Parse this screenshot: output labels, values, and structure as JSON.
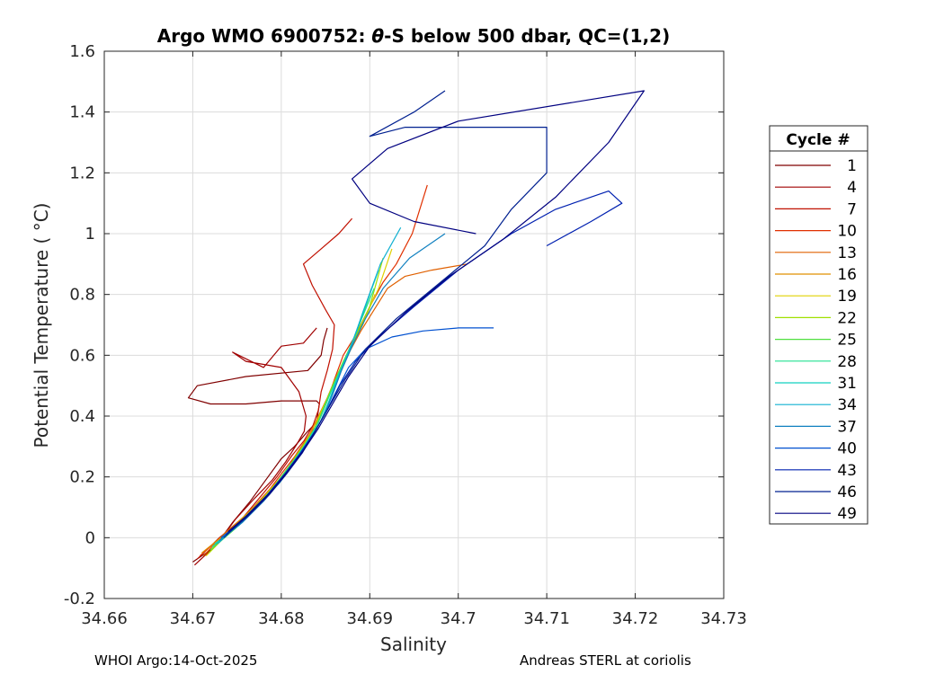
{
  "chart_data": {
    "type": "line",
    "title_part1": "Argo WMO 6900752: ",
    "title_theta": "θ",
    "title_part2": "-S below 500 dbar,  QC=(1,2)",
    "xlabel": "Salinity",
    "ylabel": "Potential Temperature ( °C)",
    "xlim": [
      34.66,
      34.73
    ],
    "ylim": [
      -0.2,
      1.6
    ],
    "x_ticks": [
      "34.66",
      "34.67",
      "34.68",
      "34.69",
      "34.7",
      "34.71",
      "34.72",
      "34.73"
    ],
    "y_ticks": [
      "-0.2",
      "0",
      "0.2",
      "0.4",
      "0.6",
      "0.8",
      "1",
      "1.2",
      "1.4",
      "1.6"
    ],
    "grid": true,
    "legend_title": "Cycle #",
    "legend_position": "right",
    "series": [
      {
        "name": "1",
        "color": "#800000",
        "x": [
          34.67,
          34.6725,
          34.6745,
          34.6765,
          34.6785,
          34.68,
          34.6815,
          34.683,
          34.684,
          34.6842,
          34.6843,
          34.684,
          34.6825,
          34.68,
          34.676,
          34.672,
          34.6695,
          34.6705,
          34.676,
          34.683,
          34.6845,
          34.6848,
          34.6852
        ],
        "y": [
          -0.08,
          -0.03,
          0.05,
          0.12,
          0.2,
          0.26,
          0.3,
          0.35,
          0.38,
          0.42,
          0.44,
          0.45,
          0.45,
          0.45,
          0.44,
          0.44,
          0.46,
          0.5,
          0.53,
          0.55,
          0.6,
          0.65,
          0.69
        ]
      },
      {
        "name": "4",
        "color": "#a00000",
        "x": [
          34.6702,
          34.6728,
          34.6748,
          34.677,
          34.679,
          34.6805,
          34.6818,
          34.6826,
          34.6828,
          34.682,
          34.68,
          34.676,
          34.6745,
          34.678,
          34.68,
          34.6825,
          34.684
        ],
        "y": [
          -0.09,
          -0.02,
          0.06,
          0.13,
          0.19,
          0.25,
          0.31,
          0.35,
          0.4,
          0.48,
          0.56,
          0.58,
          0.61,
          0.56,
          0.63,
          0.64,
          0.69
        ]
      },
      {
        "name": "7",
        "color": "#c01000",
        "x": [
          34.6705,
          34.673,
          34.6755,
          34.6775,
          34.6795,
          34.6812,
          34.6826,
          34.6836,
          34.6842,
          34.6845,
          34.6852,
          34.6858,
          34.686,
          34.685,
          34.6835,
          34.6825,
          34.6845,
          34.6865,
          34.688
        ],
        "y": [
          -0.07,
          0.0,
          0.06,
          0.13,
          0.2,
          0.27,
          0.32,
          0.37,
          0.42,
          0.48,
          0.55,
          0.62,
          0.7,
          0.75,
          0.83,
          0.9,
          0.95,
          1.0,
          1.05
        ]
      },
      {
        "name": "10",
        "color": "#e03000",
        "x": [
          34.6708,
          34.6735,
          34.676,
          34.6782,
          34.68,
          34.6816,
          34.683,
          34.6842,
          34.6852,
          34.686,
          34.687,
          34.6885,
          34.69,
          34.6915,
          34.693,
          34.6948,
          34.6965
        ],
        "y": [
          -0.06,
          0.01,
          0.07,
          0.14,
          0.21,
          0.27,
          0.33,
          0.38,
          0.45,
          0.52,
          0.6,
          0.67,
          0.76,
          0.84,
          0.9,
          1.0,
          1.16
        ]
      },
      {
        "name": "13",
        "color": "#e06000",
        "x": [
          34.6712,
          34.6738,
          34.6762,
          34.6784,
          34.6804,
          34.6818,
          34.6832,
          34.6842,
          34.6852,
          34.6862,
          34.6875,
          34.689,
          34.6905,
          34.692,
          34.694,
          34.697,
          34.701
        ],
        "y": [
          -0.06,
          0.02,
          0.08,
          0.15,
          0.21,
          0.28,
          0.34,
          0.4,
          0.46,
          0.53,
          0.6,
          0.68,
          0.75,
          0.82,
          0.86,
          0.88,
          0.9
        ]
      },
      {
        "name": "16",
        "color": "#e09000",
        "x": [
          34.671,
          34.674,
          34.6765,
          34.6786,
          34.6806,
          34.682,
          34.6834,
          34.6844,
          34.6854,
          34.6866,
          34.6878,
          34.6892,
          34.6906
        ],
        "y": [
          -0.05,
          0.02,
          0.09,
          0.15,
          0.22,
          0.28,
          0.35,
          0.41,
          0.47,
          0.54,
          0.62,
          0.7,
          0.8
        ]
      },
      {
        "name": "19",
        "color": "#e0d000",
        "x": [
          34.6715,
          34.6742,
          34.6768,
          34.6788,
          34.6806,
          34.6822,
          34.6836,
          34.6846,
          34.6856,
          34.6868,
          34.688,
          34.6894,
          34.691,
          34.6925
        ],
        "y": [
          -0.06,
          0.02,
          0.09,
          0.16,
          0.22,
          0.29,
          0.35,
          0.42,
          0.48,
          0.55,
          0.63,
          0.72,
          0.82,
          0.95
        ]
      },
      {
        "name": "22",
        "color": "#a0e000",
        "x": [
          34.6718,
          34.6745,
          34.677,
          34.679,
          34.6808,
          34.6824,
          34.6838,
          34.6848,
          34.6858,
          34.687,
          34.6884,
          34.69,
          34.6915
        ],
        "y": [
          -0.05,
          0.03,
          0.1,
          0.16,
          0.23,
          0.3,
          0.36,
          0.43,
          0.5,
          0.58,
          0.66,
          0.76,
          0.92
        ]
      },
      {
        "name": "25",
        "color": "#50e040",
        "x": [
          34.672,
          34.6748,
          34.6772,
          34.6792,
          34.681,
          34.6826,
          34.684,
          34.685,
          34.686,
          34.6872,
          34.6886,
          34.69
        ],
        "y": [
          -0.04,
          0.03,
          0.1,
          0.17,
          0.24,
          0.3,
          0.37,
          0.44,
          0.51,
          0.59,
          0.68,
          0.8
        ]
      },
      {
        "name": "28",
        "color": "#20e090",
        "x": [
          34.6722,
          34.675,
          34.6774,
          34.6794,
          34.6812,
          34.6828,
          34.6842,
          34.6852,
          34.6862,
          34.6874,
          34.6888,
          34.6905
        ],
        "y": [
          -0.03,
          0.04,
          0.11,
          0.17,
          0.24,
          0.31,
          0.38,
          0.45,
          0.52,
          0.6,
          0.7,
          0.82
        ]
      },
      {
        "name": "31",
        "color": "#10d0c0",
        "x": [
          34.6725,
          34.6752,
          34.6776,
          34.6796,
          34.6814,
          34.683,
          34.6844,
          34.6854,
          34.6864,
          34.6876,
          34.689,
          34.691
        ],
        "y": [
          -0.02,
          0.04,
          0.11,
          0.18,
          0.25,
          0.32,
          0.38,
          0.45,
          0.53,
          0.61,
          0.72,
          0.88
        ]
      },
      {
        "name": "34",
        "color": "#10b0d0",
        "x": [
          34.6728,
          34.6754,
          34.6778,
          34.6798,
          34.6816,
          34.6832,
          34.6846,
          34.6856,
          34.6866,
          34.6878,
          34.6892,
          34.6912,
          34.6935
        ],
        "y": [
          -0.02,
          0.05,
          0.12,
          0.18,
          0.25,
          0.32,
          0.39,
          0.46,
          0.54,
          0.62,
          0.74,
          0.9,
          1.02
        ]
      },
      {
        "name": "37",
        "color": "#1080c0",
        "x": [
          34.673,
          34.6756,
          34.678,
          34.68,
          34.6818,
          34.6834,
          34.6848,
          34.6858,
          34.6868,
          34.688,
          34.6895,
          34.6915,
          34.6945,
          34.6985
        ],
        "y": [
          -0.01,
          0.05,
          0.12,
          0.19,
          0.26,
          0.33,
          0.4,
          0.47,
          0.55,
          0.63,
          0.72,
          0.82,
          0.92,
          1.0
        ]
      },
      {
        "name": "40",
        "color": "#0050d0",
        "x": [
          34.6732,
          34.6758,
          34.6782,
          34.6802,
          34.682,
          34.6836,
          34.685,
          34.6862,
          34.6876,
          34.6895,
          34.6925,
          34.696,
          34.7,
          34.704
        ],
        "y": [
          0.0,
          0.06,
          0.13,
          0.2,
          0.27,
          0.34,
          0.41,
          0.48,
          0.56,
          0.62,
          0.66,
          0.68,
          0.69,
          0.69
        ]
      },
      {
        "name": "43",
        "color": "#0020b0",
        "x": [
          34.6735,
          34.676,
          34.6784,
          34.6804,
          34.6822,
          34.6838,
          34.6852,
          34.6866,
          34.6884,
          34.691,
          34.695,
          34.7,
          34.706,
          34.711,
          34.717,
          34.7185,
          34.715,
          34.71
        ],
        "y": [
          0.0,
          0.07,
          0.14,
          0.21,
          0.28,
          0.35,
          0.42,
          0.5,
          0.58,
          0.66,
          0.76,
          0.88,
          1.0,
          1.08,
          1.14,
          1.1,
          1.04,
          0.96
        ]
      },
      {
        "name": "46",
        "color": "#002090",
        "x": [
          34.6738,
          34.6762,
          34.6786,
          34.6806,
          34.6824,
          34.684,
          34.6856,
          34.6872,
          34.6895,
          34.693,
          34.698,
          34.703,
          34.706,
          34.71,
          34.71,
          34.694,
          34.69,
          34.695,
          34.6985
        ],
        "y": [
          0.01,
          0.07,
          0.14,
          0.21,
          0.28,
          0.36,
          0.44,
          0.52,
          0.62,
          0.72,
          0.84,
          0.96,
          1.08,
          1.2,
          1.35,
          1.35,
          1.32,
          1.4,
          1.47
        ]
      },
      {
        "name": "49",
        "color": "#000080",
        "x": [
          34.674,
          34.6764,
          34.6788,
          34.6808,
          34.6826,
          34.6842,
          34.6858,
          34.6876,
          34.69,
          34.694,
          34.699,
          34.705,
          34.711,
          34.717,
          34.721,
          34.7,
          34.692,
          34.688,
          34.69,
          34.695,
          34.702
        ],
        "y": [
          0.02,
          0.08,
          0.15,
          0.22,
          0.29,
          0.36,
          0.44,
          0.53,
          0.63,
          0.74,
          0.86,
          0.98,
          1.12,
          1.3,
          1.47,
          1.37,
          1.28,
          1.18,
          1.1,
          1.04,
          1.0
        ]
      }
    ]
  },
  "footer": {
    "left": "WHOI Argo:14-Oct-2025",
    "right": "Andreas STERL at coriolis"
  }
}
